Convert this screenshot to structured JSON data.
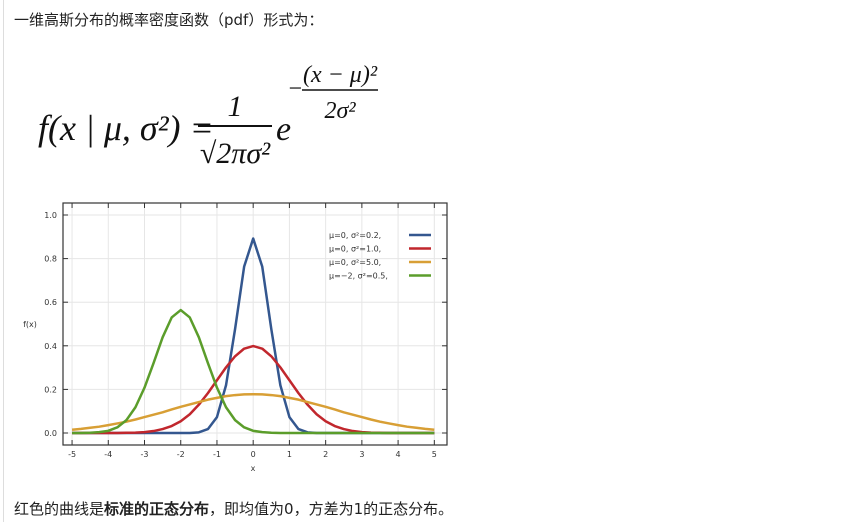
{
  "document": {
    "intro": "一维高斯分布的概率密度函数（pdf）形式为：",
    "formula": {
      "lhs": "f(x | μ, σ²) =",
      "numerator": "1",
      "denominator": "√2πσ²",
      "base": "e",
      "exponent_sign": "−",
      "exponent_numerator": "(x − μ)²",
      "exponent_denominator": "2σ²"
    },
    "conclusion": [
      "红色的曲线是",
      "标准的正态分布",
      "，即均值为0，方差为1的正态分布。"
    ]
  },
  "chart_data": {
    "type": "line",
    "xlabel": "x",
    "ylabel": "f(x)",
    "x": [
      -5,
      -4.75,
      -4.5,
      -4.25,
      -4,
      -3.75,
      -3.5,
      -3.25,
      -3,
      -2.75,
      -2.5,
      -2.25,
      -2,
      -1.75,
      -1.5,
      -1.25,
      -1,
      -0.75,
      -0.5,
      -0.25,
      0,
      0.25,
      0.5,
      0.75,
      1,
      1.25,
      1.5,
      1.75,
      2,
      2.25,
      2.5,
      2.75,
      3,
      3.25,
      3.5,
      3.75,
      4,
      4.25,
      4.5,
      4.75,
      5
    ],
    "series": [
      {
        "name": "μ=0,   σ²=0.2,",
        "color": "#34578f",
        "values": [
          0,
          0,
          0,
          0,
          0,
          0,
          0,
          0,
          0,
          0,
          0,
          0,
          0,
          0,
          0.003,
          0.018,
          0.073,
          0.219,
          0.477,
          0.763,
          0.892,
          0.763,
          0.477,
          0.219,
          0.073,
          0.018,
          0.003,
          0,
          0,
          0,
          0,
          0,
          0,
          0,
          0,
          0,
          0,
          0,
          0,
          0,
          0
        ]
      },
      {
        "name": "μ=0,   σ²=1.0,",
        "color": "#c1272d",
        "values": [
          0,
          0,
          0,
          0,
          0,
          0,
          0.001,
          0.002,
          0.004,
          0.009,
          0.018,
          0.032,
          0.054,
          0.086,
          0.13,
          0.183,
          0.242,
          0.301,
          0.352,
          0.387,
          0.399,
          0.387,
          0.352,
          0.301,
          0.242,
          0.183,
          0.13,
          0.086,
          0.054,
          0.032,
          0.018,
          0.009,
          0.004,
          0.002,
          0.001,
          0,
          0,
          0,
          0,
          0,
          0
        ]
      },
      {
        "name": "μ=0,   σ²=5.0,",
        "color": "#d89f35",
        "values": [
          0.015,
          0.019,
          0.024,
          0.029,
          0.036,
          0.044,
          0.052,
          0.062,
          0.073,
          0.084,
          0.095,
          0.108,
          0.12,
          0.131,
          0.142,
          0.153,
          0.161,
          0.169,
          0.174,
          0.177,
          0.178,
          0.177,
          0.174,
          0.169,
          0.161,
          0.153,
          0.142,
          0.131,
          0.12,
          0.108,
          0.095,
          0.084,
          0.073,
          0.062,
          0.052,
          0.044,
          0.036,
          0.029,
          0.024,
          0.019,
          0.015
        ]
      },
      {
        "name": "μ=−2, σ²=0.5,",
        "color": "#5b9d2b",
        "values": [
          0,
          0,
          0.001,
          0.004,
          0.01,
          0.026,
          0.059,
          0.118,
          0.208,
          0.321,
          0.439,
          0.53,
          0.564,
          0.53,
          0.439,
          0.321,
          0.208,
          0.118,
          0.059,
          0.026,
          0.01,
          0.004,
          0.001,
          0,
          0,
          0,
          0,
          0,
          0,
          0,
          0,
          0,
          0,
          0,
          0,
          0,
          0,
          0,
          0,
          0,
          0
        ]
      }
    ],
    "xlim": [
      -5.25,
      5.35
    ],
    "ylim": [
      -0.055,
      1.055
    ],
    "xticks": [
      -5,
      -4,
      -3,
      -2,
      -1,
      0,
      1,
      2,
      3,
      4,
      5
    ],
    "yticks": [
      {
        "value": 0,
        "label": "0.0"
      },
      0.2,
      0.4,
      0.6,
      0.8,
      {
        "value": 1,
        "label": "1.0"
      }
    ],
    "grid": true,
    "legend": "upper-right"
  }
}
